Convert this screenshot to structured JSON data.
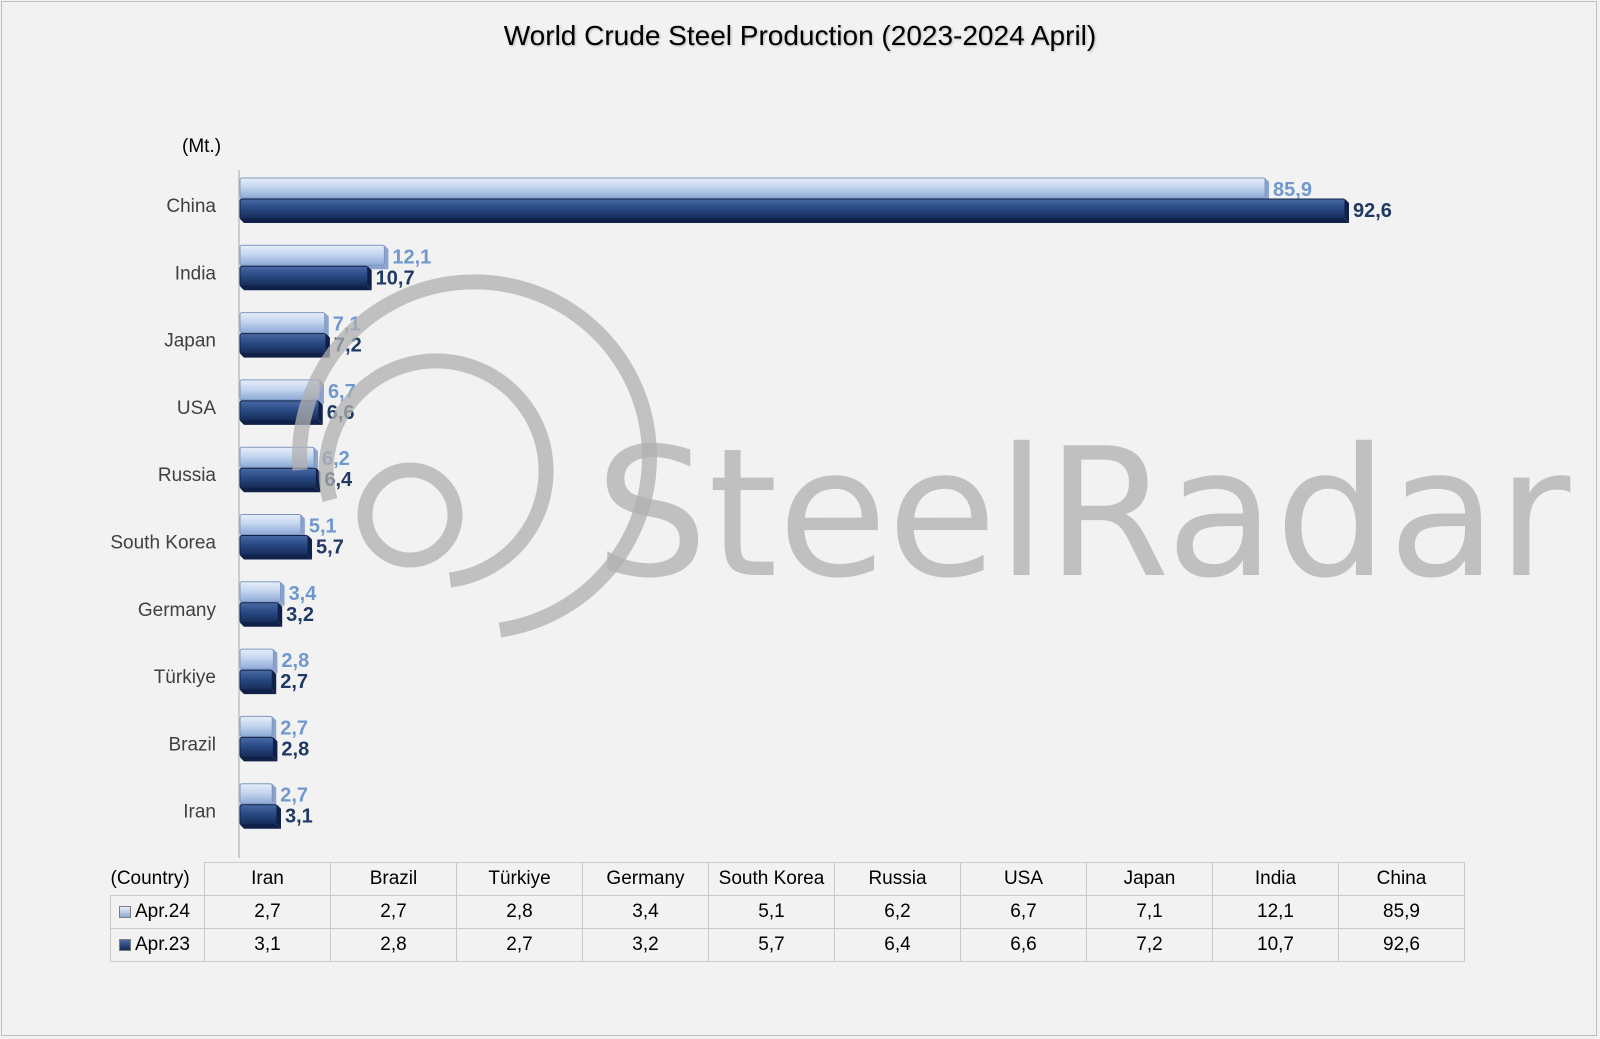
{
  "chart_data": {
    "type": "bar",
    "orientation": "horizontal",
    "title": "World Crude Steel Production (2023-2024 April)",
    "unit_label": "(Mt.)",
    "categories": [
      "China",
      "India",
      "Japan",
      "USA",
      "Russia",
      "South Korea",
      "Germany",
      "Türkiye",
      "Brazil",
      "Iran"
    ],
    "series": [
      {
        "name": "Apr.24",
        "color": "#b4c7e7",
        "values": [
          85.9,
          12.1,
          7.1,
          6.7,
          6.2,
          5.1,
          3.4,
          2.8,
          2.7,
          2.7
        ],
        "labels": [
          "85,9",
          "12,1",
          "7,1",
          "6,7",
          "6,2",
          "5,1",
          "3,4",
          "2,8",
          "2,7",
          "2,7"
        ]
      },
      {
        "name": "Apr.23",
        "color": "#1f3864",
        "values": [
          92.6,
          10.7,
          7.2,
          6.6,
          6.4,
          5.7,
          3.2,
          2.7,
          2.8,
          3.1
        ],
        "labels": [
          "92,6",
          "10,7",
          "7,2",
          "6,6",
          "6,4",
          "5,7",
          "3,2",
          "2,7",
          "2,8",
          "3,1"
        ]
      }
    ],
    "xlim": [
      0,
      100
    ],
    "grid": false,
    "legend": "data table below chart"
  },
  "table": {
    "corner": "(Country)",
    "columns": [
      "Iran",
      "Brazil",
      "Türkiye",
      "Germany",
      "South Korea",
      "Russia",
      "USA",
      "Japan",
      "India",
      "China"
    ],
    "rows": [
      {
        "label": "Apr.24",
        "color": "#b4c7e7",
        "cells": [
          "2,7",
          "2,7",
          "2,8",
          "3,4",
          "5,1",
          "6,2",
          "6,7",
          "7,1",
          "12,1",
          "85,9"
        ]
      },
      {
        "label": "Apr.23",
        "color": "#1f3864",
        "cells": [
          "3,1",
          "2,8",
          "2,7",
          "3,2",
          "5,7",
          "6,4",
          "6,6",
          "7,2",
          "10,7",
          "92,6"
        ]
      }
    ]
  },
  "watermark": {
    "text": "SteelRadar",
    "color": "#b0b0b0"
  }
}
